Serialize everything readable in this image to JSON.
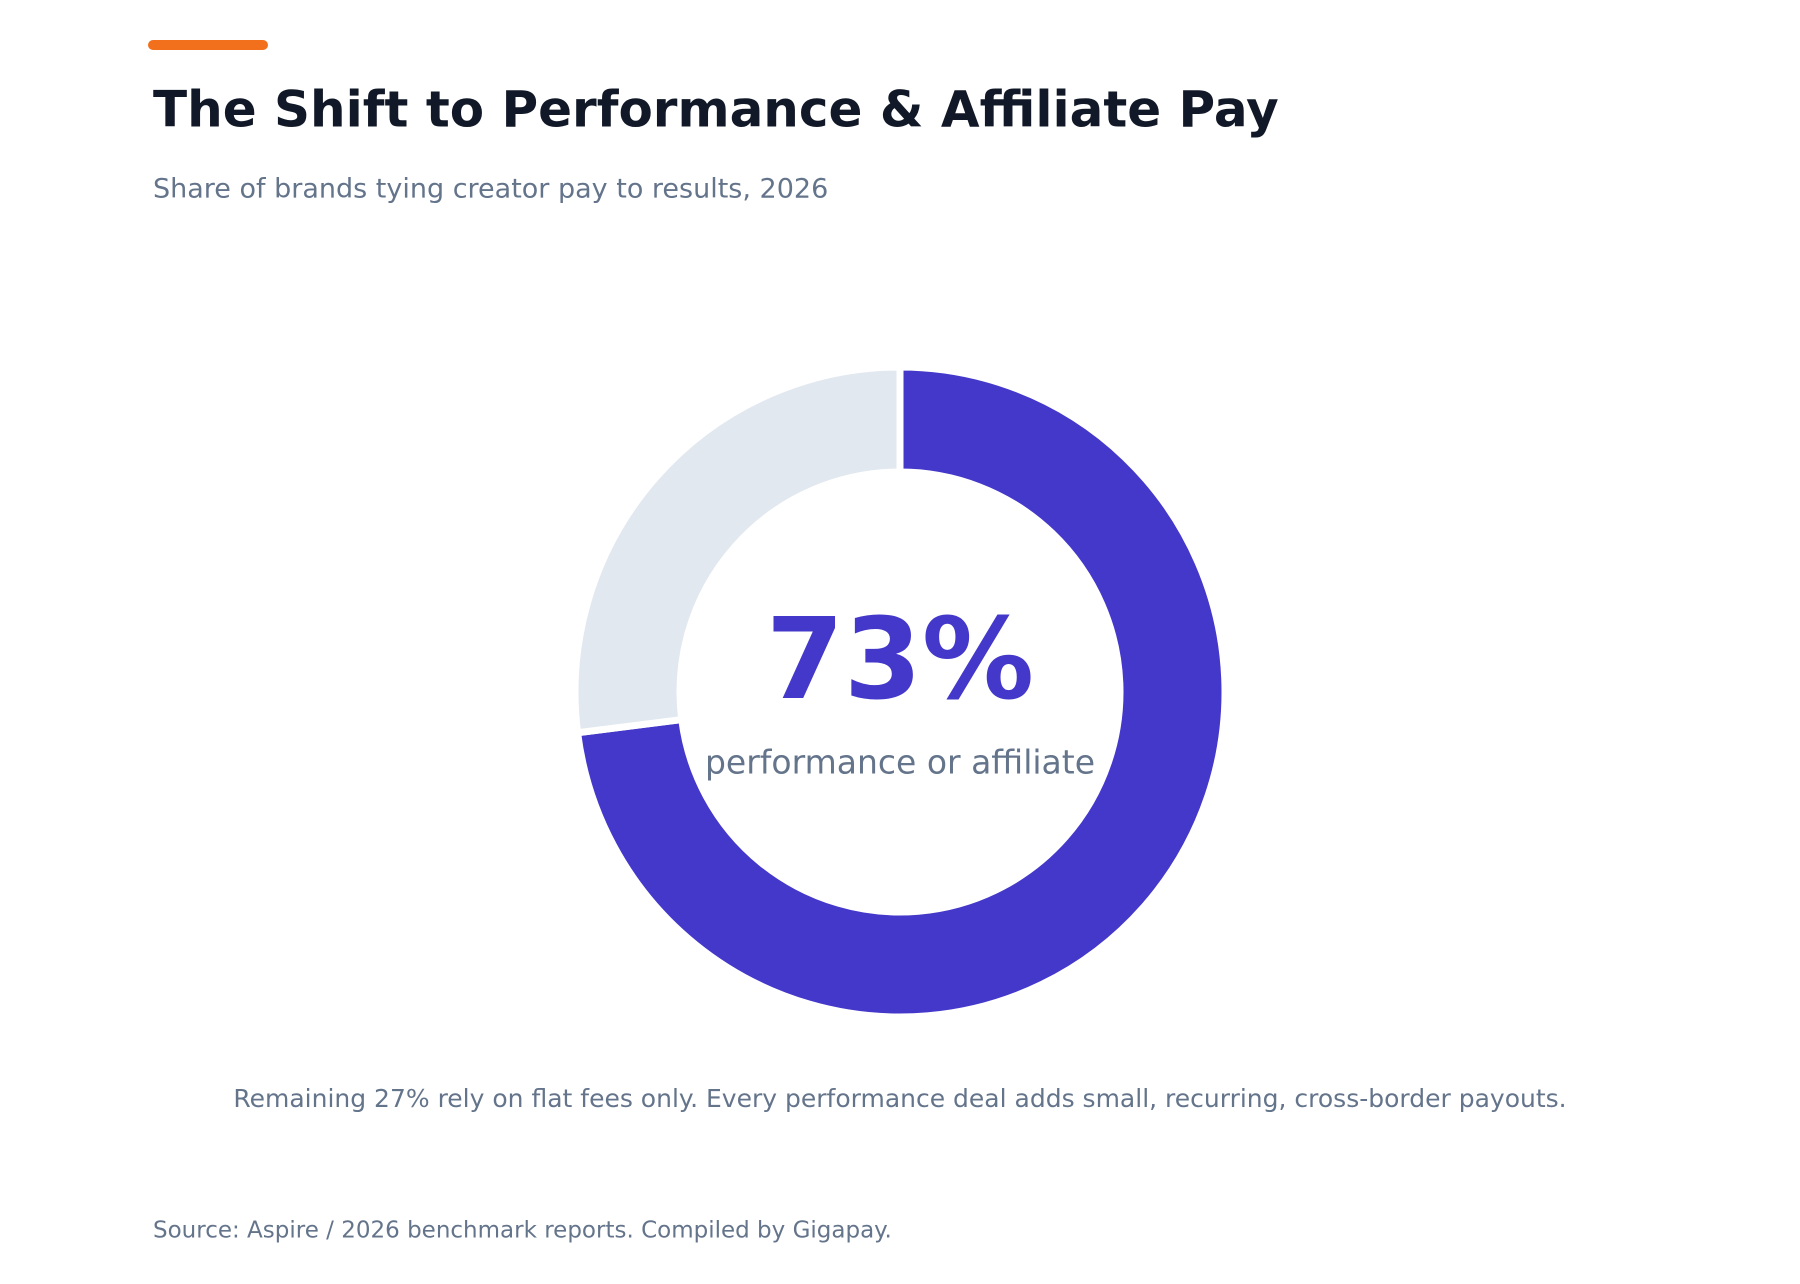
{
  "chart_data": {
    "type": "donut",
    "title": "The Shift to Performance & Affiliate Pay",
    "subtitle": "Share of brands tying creator pay to results, 2026",
    "categories": [
      "performance or affiliate",
      null
    ],
    "values": [
      73,
      27
    ],
    "value_labels": [
      "73%",
      null
    ],
    "colors": [
      "#4438ca",
      "#e2e8f0"
    ],
    "note": "Remaining 27% rely on flat fees only. Every performance deal adds small, recurring, cross-border payouts.",
    "source": "Source: Aspire / 2026 benchmark reports. Compiled by Gigapay."
  }
}
